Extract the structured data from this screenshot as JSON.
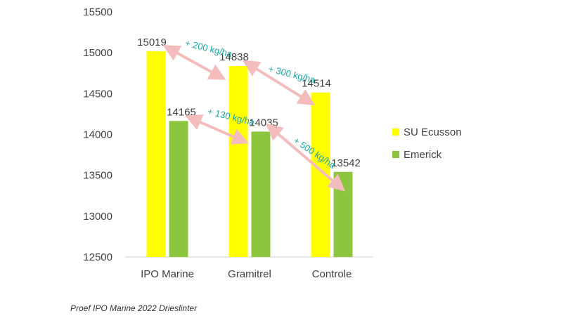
{
  "chart_data": {
    "type": "bar",
    "categories": [
      "IPO Marine",
      "Gramitrel",
      "Controle"
    ],
    "series": [
      {
        "name": "SU Ecusson",
        "values": [
          15019,
          14838,
          14514
        ]
      },
      {
        "name": "Emerick",
        "values": [
          14165,
          14035,
          13542
        ]
      }
    ],
    "ylim": [
      12500,
      15500
    ],
    "yticks": [
      12500,
      13000,
      13500,
      14000,
      14500,
      15000,
      15500
    ],
    "grid": false,
    "legend_position": "right",
    "annotations": [
      {
        "text": "+ 200 kg/ha",
        "from": [
          "IPO Marine",
          "SU Ecusson"
        ],
        "to": [
          "Gramitrel",
          "SU Ecusson"
        ]
      },
      {
        "text": "+ 300 kg/ha",
        "from": [
          "Gramitrel",
          "SU Ecusson"
        ],
        "to": [
          "Controle",
          "SU Ecusson"
        ]
      },
      {
        "text": "+ 130 kg/ha",
        "from": [
          "IPO Marine",
          "Emerick"
        ],
        "to": [
          "Gramitrel",
          "Emerick"
        ]
      },
      {
        "text": "+ 500 kg/ha",
        "from": [
          "Gramitrel",
          "Emerick"
        ],
        "to": [
          "Controle",
          "Emerick"
        ]
      }
    ]
  },
  "colors": {
    "SU Ecusson": "#ffff00",
    "Emerick": "#8cc63f",
    "arrow": "#f4bcbc",
    "annotation": "#1aa6a6"
  },
  "caption": "Proef IPO Marine 2022 Drieslinter"
}
